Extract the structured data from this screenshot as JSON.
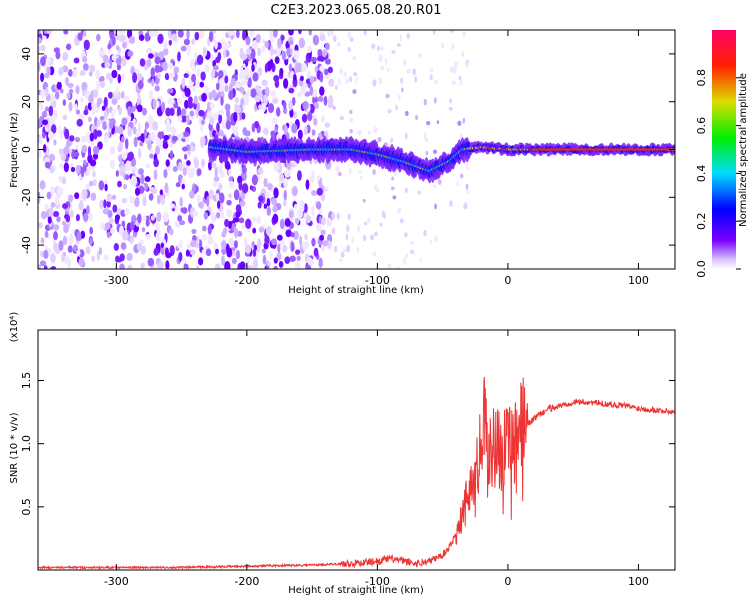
{
  "title": "C2E3.2023.065.08.20.R01",
  "colors": {
    "snr_line": "#ee3333",
    "spectrogram_core": "#ff2200",
    "spectrogram_low": "#6a00ff",
    "axis": "#000000"
  },
  "chart_data": [
    {
      "type": "heatmap",
      "xlabel": "Height of straight line (km)",
      "ylabel": "Frequency (Hz)",
      "xlim": [
        -360,
        128
      ],
      "ylim": [
        -50,
        50
      ],
      "xticks": [
        -300,
        -200,
        -100,
        0,
        100
      ],
      "yticks": [
        -40,
        -20,
        0,
        20,
        40
      ],
      "colorbar": {
        "label": "Normalized spectral amplitude",
        "range": [
          0.0,
          1.0
        ],
        "ticks": [
          "0.0",
          "0.2",
          "0.4",
          "0.6",
          "0.8"
        ],
        "colormap": "rainbow (white-purple-blue-cyan-green-yellow-red-magenta)"
      },
      "features": {
        "noise_region_x": [
          -360,
          -135
        ],
        "faint_noise_region_x": [
          -135,
          -30
        ],
        "signal_track": [
          {
            "x": -228,
            "y": 1
          },
          {
            "x": -200,
            "y": -1
          },
          {
            "x": -150,
            "y": 0
          },
          {
            "x": -120,
            "y": 0
          },
          {
            "x": -100,
            "y": -2
          },
          {
            "x": -80,
            "y": -5
          },
          {
            "x": -60,
            "y": -9
          },
          {
            "x": -45,
            "y": -5
          },
          {
            "x": -35,
            "y": 0
          },
          {
            "x": -20,
            "y": 1
          },
          {
            "x": 0,
            "y": 0
          },
          {
            "x": 50,
            "y": 0
          },
          {
            "x": 128,
            "y": 0
          }
        ]
      }
    },
    {
      "type": "line",
      "xlabel": "Height of straight line (km)",
      "ylabel": "SNR (10 * v/v)",
      "y_multiplier": "(x10⁴)",
      "xlim": [
        -360,
        128
      ],
      "ylim": [
        0,
        1.9
      ],
      "xticks": [
        -300,
        -200,
        -100,
        0,
        100
      ],
      "yticks": [
        0.5,
        1.0,
        1.5
      ],
      "series": [
        {
          "x": [
            -360,
            -300,
            -250,
            -200,
            -150,
            -120,
            -100,
            -90,
            -70,
            -60,
            -50,
            -45,
            -40,
            -35,
            -30,
            -25,
            -20,
            -18,
            -15,
            -10,
            -5,
            0,
            5,
            10,
            15,
            20,
            30,
            40,
            50,
            60,
            70,
            80,
            90,
            100,
            110,
            128
          ],
          "y": [
            0.02,
            0.02,
            0.02,
            0.03,
            0.04,
            0.05,
            0.07,
            0.09,
            0.05,
            0.07,
            0.12,
            0.18,
            0.28,
            0.45,
            0.62,
            0.8,
            1.0,
            1.15,
            0.95,
            1.0,
            0.95,
            0.95,
            1.05,
            1.15,
            1.15,
            1.2,
            1.27,
            1.3,
            1.33,
            1.33,
            1.32,
            1.31,
            1.3,
            1.28,
            1.27,
            1.25
          ]
        }
      ]
    }
  ]
}
